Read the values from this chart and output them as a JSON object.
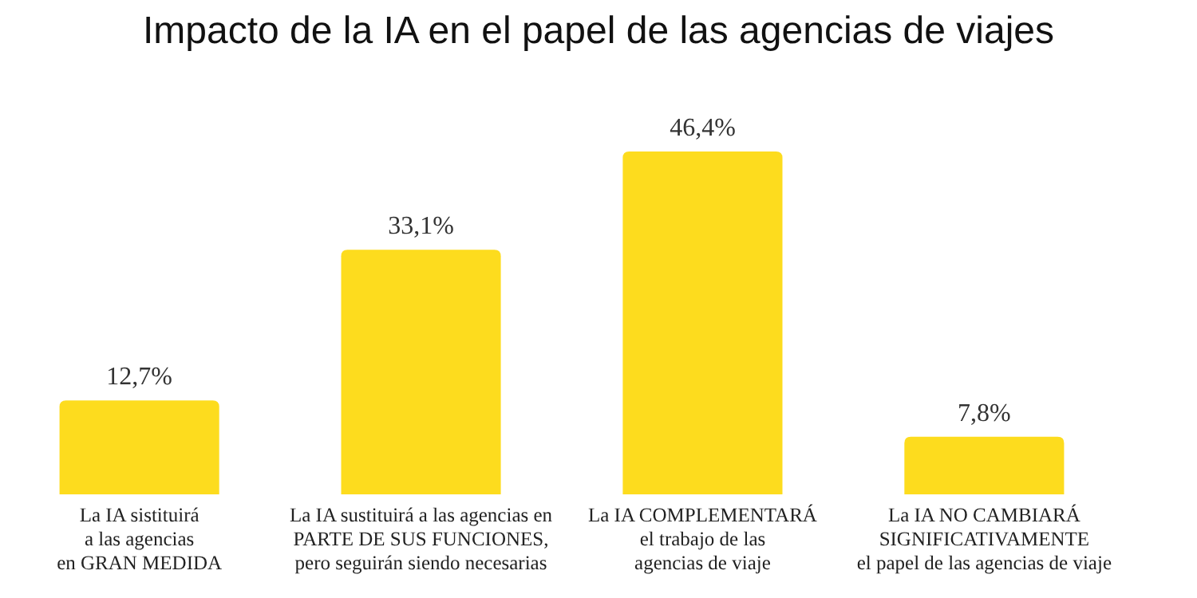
{
  "chart_data": {
    "type": "bar",
    "title": "Impacto de la IA en el papel de las agencias de viajes",
    "categories": [
      "La IA sistituirá\na las agencias\nen GRAN MEDIDA",
      "La IA sustituirá a las agencias en\nPARTE DE SUS FUNCIONES,\npero seguirán siendo necesarias",
      "La IA COMPLEMENTARÁ\nel trabajo de las\nagencias de viaje",
      "La IA NO CAMBIARÁ\nSIGNIFICATIVAMENTE\nel papel de las agencias de viaje"
    ],
    "values": [
      12.7,
      33.1,
      46.4,
      7.8
    ],
    "value_labels": [
      "12,7%",
      "33,1%",
      "46,4%",
      "7,8%"
    ],
    "color": "#fddc1e"
  }
}
